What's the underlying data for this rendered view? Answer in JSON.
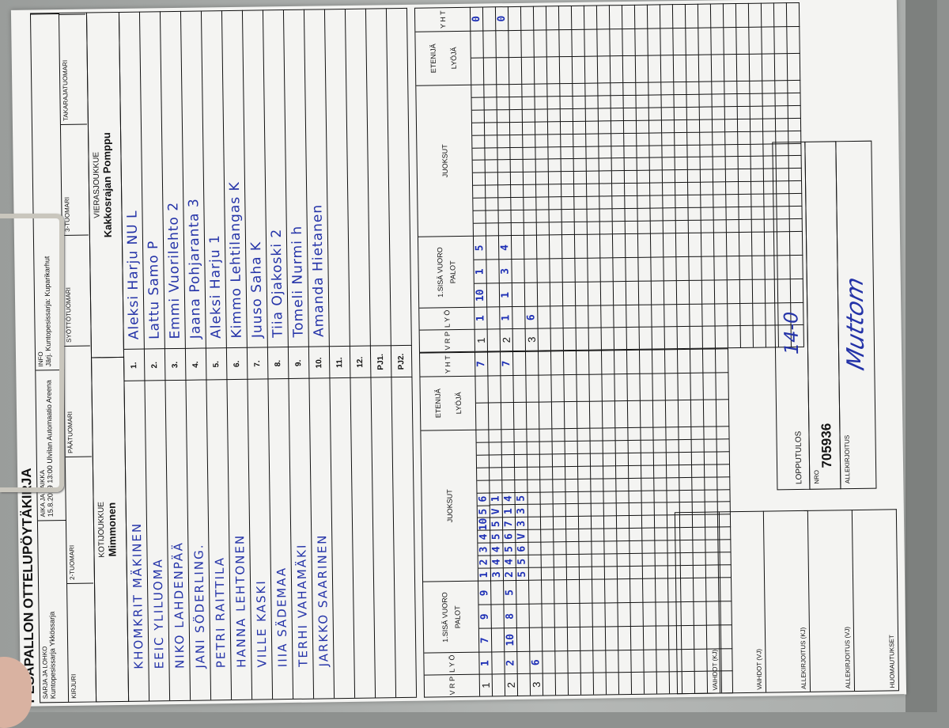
{
  "form": {
    "title": "PESÄPALLON OTTELUPÖYTÄKIRJA",
    "header_row1": [
      {
        "label": "SARJA JA LOHKO",
        "value": "Kuntopesissarja Ykkössarja"
      },
      {
        "label": "AIKA JA PAIKKA",
        "value": "15.8.2019 13:00 Ulvilan Automaatio Areena"
      },
      {
        "label": "INFO",
        "value": "Järj. Kuntopesissarja: Kuparikarhut"
      }
    ],
    "header_row2": [
      "KIRJURI",
      "2-TUOMARI",
      "PÄÄTUOMARI",
      "SYÖTTÖTUOMARI",
      "3-TUOMARI",
      "TAKARAJATUOMARI"
    ],
    "home_label": "KOTIJOUKKUE",
    "home_team": "Mimmonen",
    "away_label": "VIERASJOUKKUE",
    "away_team": "Kakkosrajan Pomppu",
    "row_numbers": [
      "1.",
      "2.",
      "3.",
      "4.",
      "5.",
      "6.",
      "7.",
      "8.",
      "9.",
      "10.",
      "11.",
      "12.",
      "PJ1.",
      "PJ2."
    ],
    "home_players": [
      "KHOMKRIT MÄKINEN",
      "EEIC YLILUOMA",
      "NIKO LAHDENPÄÄ",
      "JANI SÖDERLING.",
      "PETRI RAITTILA",
      "HANNA LEHTONEN",
      "VILLE KASKI",
      "IIIA SÄDEMAA",
      "TERHI VAHAMÄKI",
      "JARKKO SAARINEN"
    ],
    "away_players": [
      "Aleksi Harju  NU  L",
      "Lattu  Samo  P",
      "Emmi  Vuorilehto  2",
      "Jaana  Pohjaranta  3",
      "Aleksi  Harju  1",
      "Kimmo  Lehtilangas K",
      "Juuso  Saha  K",
      "Tiia  Ojakoski  2",
      "Tomeli  Nurmi  h",
      "Amanda  Hietanen"
    ],
    "scoring_headers": {
      "vrp": "V R P",
      "lyo": "L Y Ö",
      "sisa": "1.SISÄ VUORO",
      "palot": "PALOT",
      "juoksut": "JUOKSUT",
      "etenija": "ETENIJÄ",
      "lyoja": "LYÖJÄ",
      "yht": "Y H T"
    },
    "home_scoring": {
      "innings": [
        {
          "v": "1",
          "l": "1",
          "palot": [
            "7",
            "9",
            "9"
          ],
          "runs": [
            [
              "1",
              "2",
              "3",
              "4",
              "10",
              "5",
              "6"
            ],
            [
              "3",
              "4",
              "4",
              "5",
              "5",
              "V",
              "1"
            ]
          ],
          "yht": "7"
        },
        {
          "v": "2",
          "l": "2",
          "palot": [
            "10",
            "8",
            "5"
          ],
          "runs": [
            [
              "2",
              "4",
              "5",
              "6",
              "7",
              "1",
              "4"
            ],
            [
              "5",
              "5",
              "6",
              "V",
              "3",
              "3",
              "5"
            ]
          ],
          "yht": "7"
        },
        {
          "v": "3",
          "l": "6",
          "palot": [
            "",
            "",
            ""
          ],
          "runs": [],
          "yht": ""
        }
      ]
    },
    "away_scoring": {
      "innings": [
        {
          "v": "1",
          "l": "1",
          "palot": [
            "10",
            "1",
            "5"
          ],
          "runs": [],
          "yht": "0"
        },
        {
          "v": "2",
          "l": "1",
          "palot": [
            "1",
            "3",
            "4"
          ],
          "runs": [],
          "yht": "0"
        },
        {
          "v": "3",
          "l": "6",
          "palot": [
            "",
            "",
            ""
          ],
          "runs": [],
          "yht": ""
        }
      ]
    },
    "bottom_left_labels": [
      "VAIHDOT (KJ)",
      "VAIHDOT (VJ)",
      "ALLEKIRJOITUS (KJ)",
      "ALLEKIRJOITUS (VJ)",
      "HUOMAUTUKSET"
    ],
    "final_result_label": "LOPPUTULOS",
    "final_result": "14-0",
    "nro_label": "NRO",
    "nro": "705936",
    "signature_label": "ALLEKIRJOITUS",
    "signature": "Muttom"
  },
  "colors": {
    "ink": "#1d2fb5",
    "paper": "#f4f4f2",
    "clipboard": "#a6a9a7"
  }
}
